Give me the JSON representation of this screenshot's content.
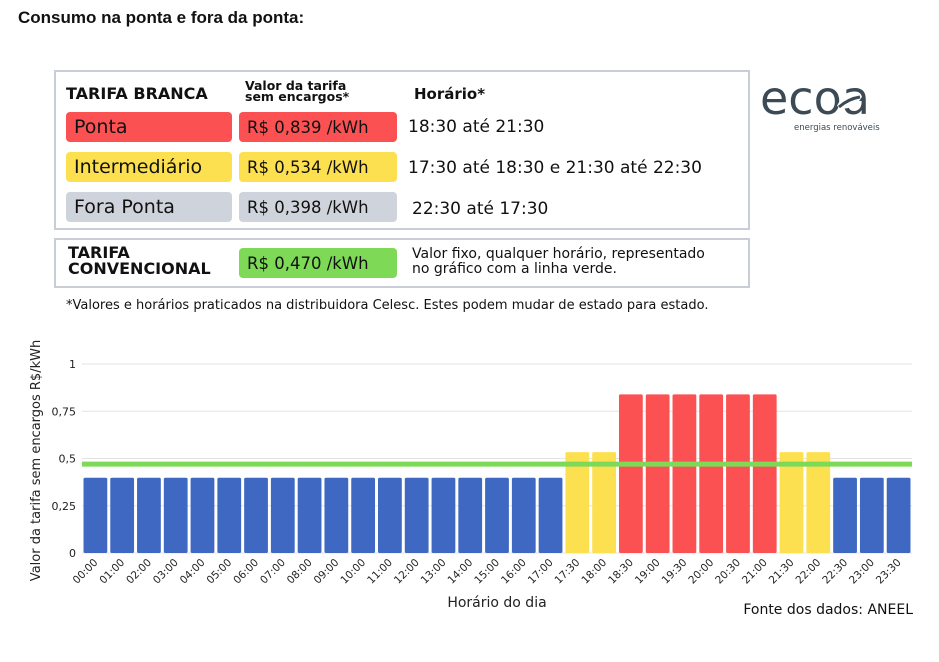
{
  "page": {
    "title": "Consumo na ponta e fora da ponta:"
  },
  "branca": {
    "title": "TARIFA BRANCA",
    "col_valor_line1": "Valor da tarifa",
    "col_valor_line2": "sem encargos*",
    "col_horario": "Horário*",
    "rows": [
      {
        "name": "Ponta",
        "price": "R$ 0,839 /kWh",
        "hours": "18:30 até 21:30",
        "color": "#fb5153"
      },
      {
        "name": "Intermediário",
        "price": "R$ 0,534 /kWh",
        "hours": "17:30 até 18:30 e 21:30 até 22:30",
        "color": "#fde04f"
      },
      {
        "name": "Fora Ponta",
        "price": "R$ 0,398 /kWh",
        "hours": "22:30 até 17:30",
        "color": "#cfd4dc"
      }
    ]
  },
  "convencional": {
    "title_line1": "TARIFA",
    "title_line2": "CONVENCIONAL",
    "price": "R$ 0,470 /kWh",
    "price_color": "#7ed957",
    "desc_line1": "Valor fixo, qualquer horário, representado",
    "desc_line2": "no gráfico com a linha verde."
  },
  "footnote": "*Valores e horários praticados na distribuidora Celesc. Estes podem mudar de estado para estado.",
  "logo": {
    "icon": "ecoa-leaf-logo-icon",
    "wordmark": "ecoa",
    "tagline": "energias renováveis",
    "color": "#3b4a55"
  },
  "source": "Fonte dos dados: ANEEL",
  "chart_data": {
    "type": "bar",
    "xlabel": "Horário do dia",
    "ylabel": "Valor da tarifa sem encargos R$/kWh",
    "ylim": [
      0,
      1
    ],
    "yticks": [
      0,
      0.25,
      0.5,
      0.75,
      1
    ],
    "ytick_labels": [
      "0",
      "0,25",
      "0,5",
      "0,75",
      "1"
    ],
    "grid": "horizontal",
    "categories": [
      "00:00",
      "01:00",
      "02:00",
      "03:00",
      "04:00",
      "05:00",
      "06:00",
      "07:00",
      "08:00",
      "09:00",
      "10:00",
      "11:00",
      "12:00",
      "13:00",
      "14:00",
      "15:00",
      "16:00",
      "17:00",
      "17:30",
      "18:00",
      "18:30",
      "19:00",
      "19:30",
      "20:00",
      "20:30",
      "21:00",
      "21:30",
      "22:00",
      "22:30",
      "23:00",
      "23:30"
    ],
    "values": [
      0.398,
      0.398,
      0.398,
      0.398,
      0.398,
      0.398,
      0.398,
      0.398,
      0.398,
      0.398,
      0.398,
      0.398,
      0.398,
      0.398,
      0.398,
      0.398,
      0.398,
      0.398,
      0.534,
      0.534,
      0.839,
      0.839,
      0.839,
      0.839,
      0.839,
      0.839,
      0.534,
      0.534,
      0.398,
      0.398,
      0.398
    ],
    "colors_by_value": {
      "0.398": "#3f68c2",
      "0.534": "#fde04f",
      "0.839": "#fb5153"
    },
    "reference_line": {
      "value": 0.47,
      "color": "#7ed957"
    }
  }
}
